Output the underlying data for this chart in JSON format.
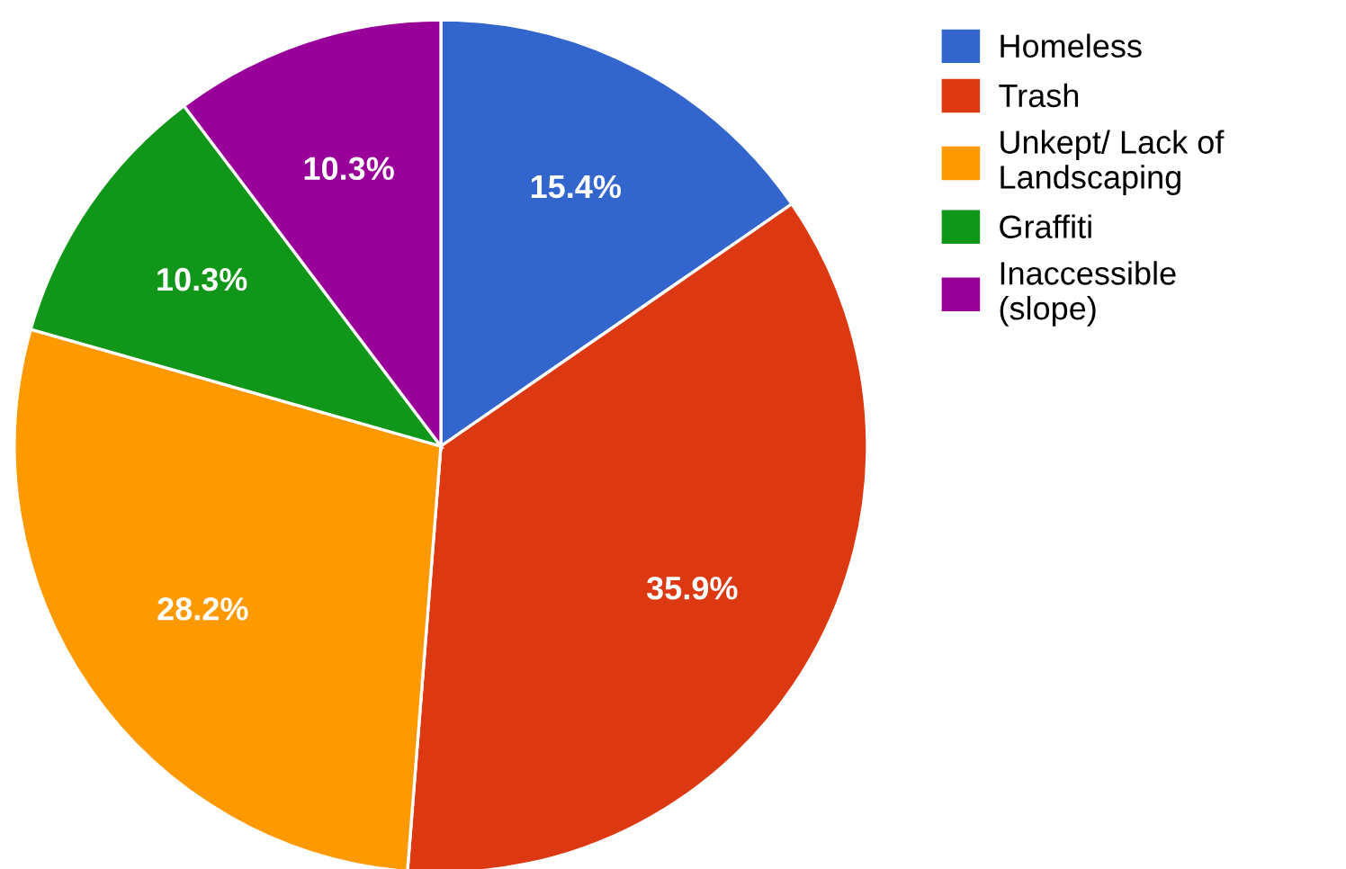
{
  "chart_data": {
    "type": "pie",
    "categories": [
      "Homeless",
      "Trash",
      "Unkept/ Lack of Landscaping",
      "Graffiti",
      "Inaccessible (slope)"
    ],
    "values": [
      15.4,
      35.9,
      28.2,
      10.3,
      10.3
    ],
    "colors": [
      "#3366cc",
      "#dc3912",
      "#ff9900",
      "#109618",
      "#990099"
    ],
    "value_labels": [
      "15.4%",
      "35.9%",
      "28.2%",
      "10.3%",
      "10.3%"
    ],
    "legend": "right"
  }
}
